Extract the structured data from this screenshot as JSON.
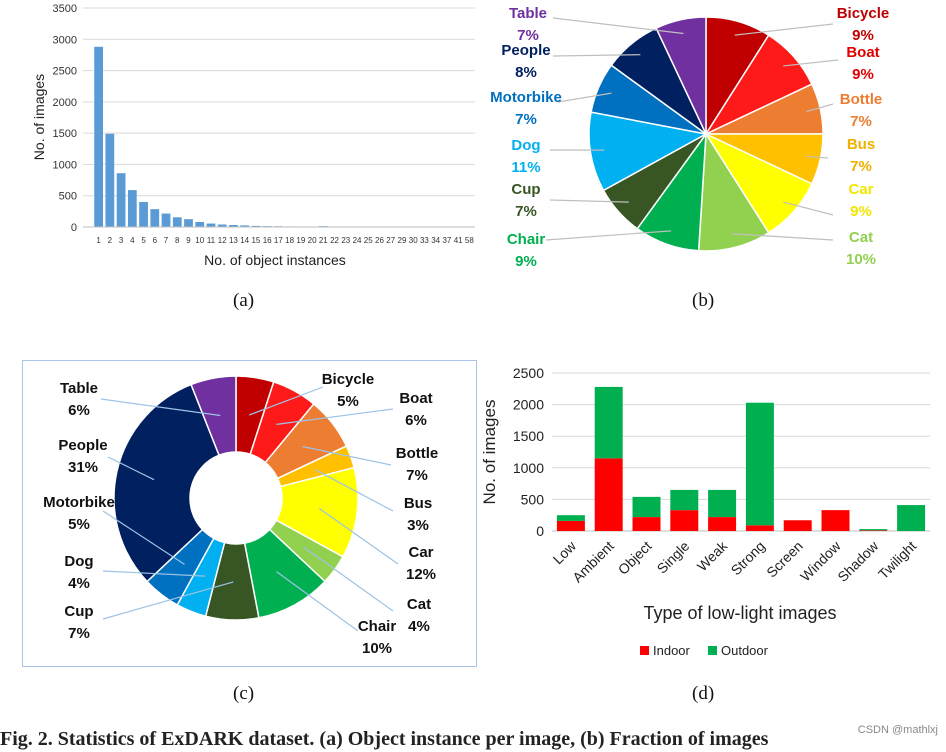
{
  "captions": {
    "a": "(a)",
    "b": "(b)",
    "c": "(c)",
    "d": "(d)"
  },
  "footer": {
    "text": "Fig. 2.  Statistics of ExDARK dataset. (a) Object instance per image, (b) Fraction of images",
    "watermark": "CSDN @mathlxj"
  },
  "chart_data": [
    {
      "id": "a",
      "type": "bar",
      "title": "",
      "xlabel": "No. of object instances",
      "ylabel": "No. of images",
      "ylim": [
        0,
        3500
      ],
      "yticks": [
        "0",
        "500",
        "1000",
        "1500",
        "2000",
        "2500",
        "3000",
        "3500"
      ],
      "categories": [
        "1",
        "2",
        "3",
        "4",
        "5",
        "6",
        "7",
        "8",
        "9",
        "10",
        "11",
        "12",
        "13",
        "14",
        "15",
        "16",
        "17",
        "18",
        "19",
        "20",
        "21",
        "22",
        "23",
        "24",
        "25",
        "26",
        "27",
        "29",
        "30",
        "33",
        "34",
        "37",
        "41",
        "58"
      ],
      "values": [
        2880,
        1490,
        860,
        590,
        400,
        285,
        215,
        155,
        125,
        80,
        55,
        40,
        32,
        25,
        18,
        14,
        12,
        9,
        7,
        6,
        14,
        5,
        4,
        3,
        3,
        2,
        2,
        2,
        2,
        1,
        1,
        1,
        1,
        1
      ],
      "color": "#5b9bd5"
    },
    {
      "id": "b",
      "type": "pie",
      "slices": [
        {
          "label": "Bicycle",
          "value": 9,
          "pct": "9%",
          "color": "#c00000",
          "text_color": "#c00000"
        },
        {
          "label": "Boat",
          "value": 9,
          "pct": "9%",
          "color": "#ff1a1a",
          "text_color": "#e00000"
        },
        {
          "label": "Bottle",
          "value": 7,
          "pct": "7%",
          "color": "#ed7d31",
          "text_color": "#ed7d31"
        },
        {
          "label": "Bus",
          "value": 7,
          "pct": "7%",
          "color": "#ffc000",
          "text_color": "#f0b000"
        },
        {
          "label": "Car",
          "value": 9,
          "pct": "9%",
          "color": "#ffff00",
          "text_color": "#f2e600"
        },
        {
          "label": "Cat",
          "value": 10,
          "pct": "10%",
          "color": "#92d050",
          "text_color": "#92d050"
        },
        {
          "label": "Chair",
          "value": 9,
          "pct": "9%",
          "color": "#00b050",
          "text_color": "#00b050"
        },
        {
          "label": "Cup",
          "value": 7,
          "pct": "7%",
          "color": "#375623",
          "text_color": "#375623"
        },
        {
          "label": "Dog",
          "value": 11,
          "pct": "11%",
          "color": "#00b0f0",
          "text_color": "#00b0f0"
        },
        {
          "label": "Motorbike",
          "value": 7,
          "pct": "7%",
          "color": "#0070c0",
          "text_color": "#0070c0"
        },
        {
          "label": "People",
          "value": 8,
          "pct": "8%",
          "color": "#002060",
          "text_color": "#002060"
        },
        {
          "label": "Table",
          "value": 7,
          "pct": "7%",
          "color": "#7030a0",
          "text_color": "#7030a0"
        }
      ]
    },
    {
      "id": "c",
      "type": "pie",
      "subtype": "doughnut",
      "slices": [
        {
          "label": "Bicycle",
          "value": 5,
          "pct": "5%",
          "color": "#c00000"
        },
        {
          "label": "Boat",
          "value": 6,
          "pct": "6%",
          "color": "#ff1a1a"
        },
        {
          "label": "Bottle",
          "value": 7,
          "pct": "7%",
          "color": "#ed7d31"
        },
        {
          "label": "Bus",
          "value": 3,
          "pct": "3%",
          "color": "#ffc000"
        },
        {
          "label": "Car",
          "value": 12,
          "pct": "12%",
          "color": "#ffff00"
        },
        {
          "label": "Cat",
          "value": 4,
          "pct": "4%",
          "color": "#92d050"
        },
        {
          "label": "Chair",
          "value": 10,
          "pct": "10%",
          "color": "#00b050"
        },
        {
          "label": "Cup",
          "value": 7,
          "pct": "7%",
          "color": "#375623"
        },
        {
          "label": "Dog",
          "value": 4,
          "pct": "4%",
          "color": "#00b0f0"
        },
        {
          "label": "Motorbike",
          "value": 5,
          "pct": "5%",
          "color": "#0070c0"
        },
        {
          "label": "People",
          "value": 31,
          "pct": "31%",
          "color": "#002060"
        },
        {
          "label": "Table",
          "value": 6,
          "pct": "6%",
          "color": "#7030a0"
        }
      ],
      "label_color": "#111111"
    },
    {
      "id": "d",
      "type": "bar",
      "subtype": "stacked",
      "xlabel": "Type of low-light images",
      "ylabel": "No. of images",
      "ylim": [
        0,
        2500
      ],
      "yticks": [
        "0",
        "500",
        "1000",
        "1500",
        "2000",
        "2500"
      ],
      "categories": [
        "Low",
        "Ambient",
        "Object",
        "Single",
        "Weak",
        "Strong",
        "Screen",
        "Window",
        "Shadow",
        "Twilight"
      ],
      "series": [
        {
          "name": "Indoor",
          "color": "#ff0000",
          "values": [
            160,
            1150,
            220,
            330,
            220,
            90,
            170,
            330,
            10,
            0
          ]
        },
        {
          "name": "Outdoor",
          "color": "#00b050",
          "values": [
            90,
            1130,
            320,
            320,
            430,
            1940,
            0,
            0,
            20,
            410
          ]
        }
      ],
      "legend": "bottom"
    }
  ]
}
